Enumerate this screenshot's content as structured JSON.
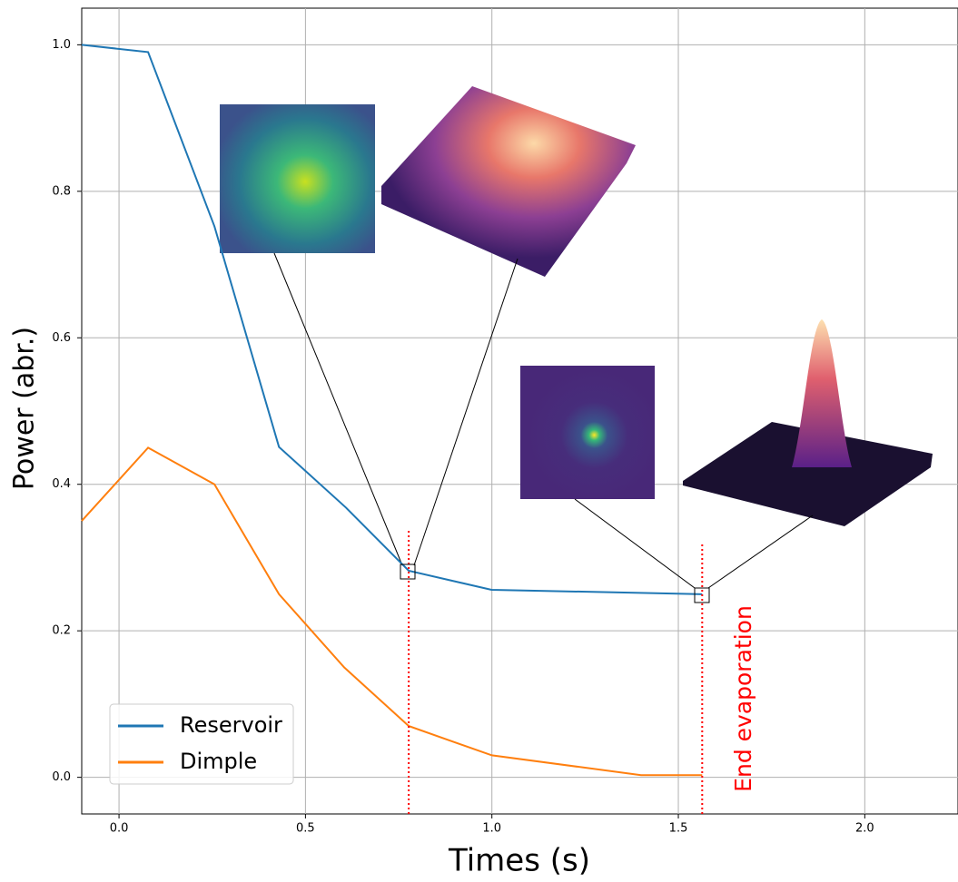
{
  "chart_data": {
    "type": "line",
    "xlabel": "Times (s)",
    "ylabel": "Power (abr.)",
    "xlim": [
      -0.1,
      2.25
    ],
    "ylim": [
      -0.05,
      1.05
    ],
    "xticks": [
      {
        "value": 0,
        "label": "0.0"
      },
      {
        "value": 0.5,
        "label": "0.5"
      },
      {
        "value": 1,
        "label": "1.0"
      },
      {
        "value": 1.5,
        "label": "1.5"
      },
      {
        "value": 2,
        "label": "2.0"
      }
    ],
    "yticks": [
      {
        "value": 0,
        "label": "0.0"
      },
      {
        "value": 0.2,
        "label": "0.2"
      },
      {
        "value": 0.4,
        "label": "0.4"
      },
      {
        "value": 0.6,
        "label": "0.6"
      },
      {
        "value": 0.8,
        "label": "0.8"
      },
      {
        "value": 1,
        "label": "1.0"
      }
    ],
    "grid": true,
    "legend": "lower left",
    "series": [
      {
        "name": "Reservoir",
        "color": "#1f77b4",
        "x": [
          -0.1,
          0.078,
          0.256,
          0.429,
          0.609,
          0.777,
          0.999,
          1.564
        ],
        "values": [
          1.0,
          0.99,
          0.752,
          0.451,
          0.368,
          0.282,
          0.256,
          0.25
        ]
      },
      {
        "name": "Dimple",
        "color": "#ff7f0e",
        "x": [
          -0.1,
          0.078,
          0.256,
          0.429,
          0.604,
          0.777,
          1.0,
          1.4,
          1.564
        ],
        "values": [
          0.35,
          0.45,
          0.4,
          0.25,
          0.15,
          0.07,
          0.03,
          0.003,
          0.003
        ]
      }
    ],
    "vlines": [
      0.777,
      1.564
    ],
    "vline_color": "red",
    "annotation": "End evaporation"
  }
}
